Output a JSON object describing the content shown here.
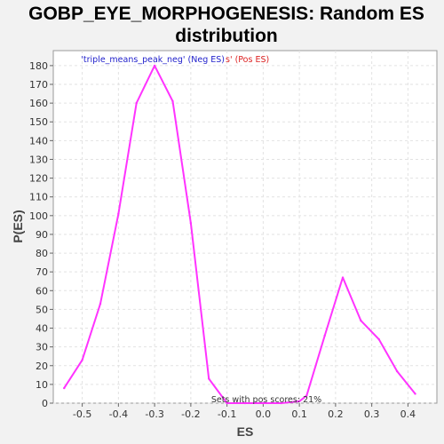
{
  "chart_data": {
    "type": "line",
    "title_line1": "GOBP_EYE_MORPHOGENESIS: Random ES",
    "title_line2": "distribution",
    "xlabel": "ES",
    "ylabel": "P(ES)",
    "xlim": [
      -0.58,
      0.48
    ],
    "ylim": [
      0,
      188
    ],
    "x_ticks": [
      -0.5,
      -0.4,
      -0.3,
      -0.2,
      -0.1,
      0.0,
      0.1,
      0.2,
      0.3,
      0.4
    ],
    "x_tick_labels": [
      "-0.5",
      "-0.4",
      "-0.3",
      "-0.2",
      "-0.1",
      "0.0",
      "0.1",
      "0.2",
      "0.3",
      "0.4"
    ],
    "y_ticks": [
      0,
      10,
      20,
      30,
      40,
      50,
      60,
      70,
      80,
      90,
      100,
      110,
      120,
      130,
      140,
      150,
      160,
      170,
      180
    ],
    "grid": true,
    "series": [
      {
        "color": "#ff33ff",
        "x": [
          -0.55,
          -0.5,
          -0.45,
          -0.4,
          -0.35,
          -0.3,
          -0.25,
          -0.2,
          -0.15,
          -0.1,
          -0.05,
          0.0,
          0.05,
          0.1,
          0.12,
          0.17,
          0.22,
          0.27,
          0.32,
          0.37,
          0.42
        ],
        "y": [
          8,
          23,
          53,
          101,
          160,
          180,
          161,
          96,
          13,
          0,
          0,
          0,
          0,
          1,
          4,
          36,
          67,
          44,
          34,
          17,
          5
        ]
      }
    ],
    "legend": {
      "neg_text": "'triple_means_peak_neg' (Neg ES)",
      "pos_text": "s' (Pos ES)",
      "neg_color": "#2222cc",
      "pos_color": "#dd2222"
    },
    "annotation": "Sets with pos scores: 21%"
  }
}
